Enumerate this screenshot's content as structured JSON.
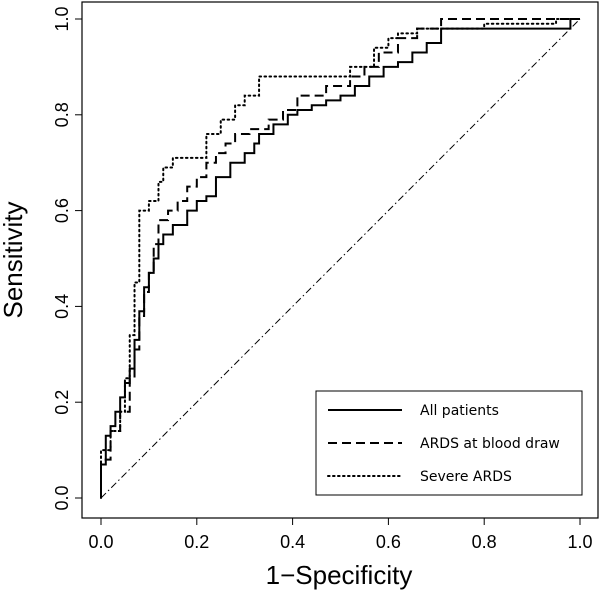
{
  "chart_data": {
    "type": "line",
    "title": "",
    "xlabel": "1−Specificity",
    "ylabel": "Sensitivity",
    "xlim": [
      0,
      1
    ],
    "ylim": [
      0,
      1
    ],
    "x_ticks": [
      "0.0",
      "0.2",
      "0.4",
      "0.6",
      "0.8",
      "1.0"
    ],
    "y_ticks": [
      "0.0",
      "0.2",
      "0.4",
      "0.6",
      "0.8",
      "1.0"
    ],
    "grid": false,
    "legend_position": "bottom-right",
    "reference_line": {
      "style": "dash-dot",
      "x": [
        0,
        1
      ],
      "y": [
        0,
        1
      ]
    },
    "series": [
      {
        "name": "All patients",
        "style": "solid",
        "x": [
          0.0,
          0.0,
          0.01,
          0.01,
          0.02,
          0.02,
          0.03,
          0.03,
          0.04,
          0.04,
          0.05,
          0.05,
          0.06,
          0.06,
          0.07,
          0.07,
          0.08,
          0.08,
          0.09,
          0.09,
          0.1,
          0.1,
          0.11,
          0.11,
          0.12,
          0.12,
          0.13,
          0.13,
          0.15,
          0.15,
          0.18,
          0.18,
          0.2,
          0.2,
          0.22,
          0.22,
          0.24,
          0.24,
          0.27,
          0.27,
          0.3,
          0.3,
          0.32,
          0.32,
          0.33,
          0.33,
          0.36,
          0.36,
          0.39,
          0.39,
          0.41,
          0.41,
          0.44,
          0.44,
          0.47,
          0.47,
          0.5,
          0.5,
          0.53,
          0.53,
          0.56,
          0.56,
          0.59,
          0.59,
          0.62,
          0.62,
          0.65,
          0.65,
          0.68,
          0.68,
          0.71,
          0.71,
          0.98,
          0.98,
          1.0
        ],
        "y": [
          0.0,
          0.07,
          0.07,
          0.13,
          0.13,
          0.15,
          0.15,
          0.18,
          0.18,
          0.21,
          0.21,
          0.24,
          0.24,
          0.27,
          0.27,
          0.33,
          0.33,
          0.39,
          0.39,
          0.44,
          0.44,
          0.47,
          0.47,
          0.5,
          0.5,
          0.53,
          0.53,
          0.55,
          0.55,
          0.57,
          0.57,
          0.6,
          0.6,
          0.62,
          0.62,
          0.63,
          0.63,
          0.67,
          0.67,
          0.7,
          0.7,
          0.72,
          0.72,
          0.74,
          0.74,
          0.76,
          0.76,
          0.78,
          0.78,
          0.8,
          0.8,
          0.81,
          0.81,
          0.82,
          0.82,
          0.83,
          0.83,
          0.84,
          0.84,
          0.86,
          0.86,
          0.88,
          0.88,
          0.9,
          0.9,
          0.91,
          0.91,
          0.93,
          0.93,
          0.95,
          0.95,
          0.98,
          0.98,
          1.0,
          1.0
        ]
      },
      {
        "name": "ARDS at blood draw",
        "style": "dashed",
        "x": [
          0.0,
          0.0,
          0.02,
          0.02,
          0.04,
          0.04,
          0.06,
          0.06,
          0.07,
          0.07,
          0.08,
          0.08,
          0.09,
          0.09,
          0.1,
          0.1,
          0.11,
          0.11,
          0.12,
          0.12,
          0.14,
          0.14,
          0.16,
          0.16,
          0.18,
          0.18,
          0.2,
          0.2,
          0.22,
          0.22,
          0.24,
          0.24,
          0.26,
          0.26,
          0.28,
          0.28,
          0.31,
          0.31,
          0.35,
          0.35,
          0.38,
          0.38,
          0.41,
          0.41,
          0.47,
          0.47,
          0.52,
          0.52,
          0.55,
          0.55,
          0.58,
          0.58,
          0.62,
          0.62,
          0.66,
          0.66,
          0.71,
          0.71,
          1.0
        ],
        "y": [
          0.0,
          0.08,
          0.08,
          0.14,
          0.14,
          0.18,
          0.18,
          0.25,
          0.25,
          0.31,
          0.31,
          0.38,
          0.38,
          0.43,
          0.43,
          0.47,
          0.47,
          0.53,
          0.53,
          0.58,
          0.58,
          0.6,
          0.6,
          0.62,
          0.62,
          0.65,
          0.65,
          0.67,
          0.67,
          0.7,
          0.7,
          0.72,
          0.72,
          0.74,
          0.74,
          0.76,
          0.76,
          0.77,
          0.77,
          0.79,
          0.79,
          0.81,
          0.81,
          0.84,
          0.84,
          0.86,
          0.86,
          0.88,
          0.88,
          0.9,
          0.9,
          0.93,
          0.93,
          0.96,
          0.96,
          0.98,
          0.98,
          1.0,
          1.0
        ]
      },
      {
        "name": "Severe ARDS",
        "style": "dotted",
        "x": [
          0.0,
          0.0,
          0.02,
          0.02,
          0.04,
          0.04,
          0.05,
          0.05,
          0.06,
          0.06,
          0.07,
          0.07,
          0.08,
          0.08,
          0.1,
          0.1,
          0.12,
          0.12,
          0.13,
          0.13,
          0.15,
          0.15,
          0.22,
          0.22,
          0.25,
          0.25,
          0.28,
          0.28,
          0.3,
          0.3,
          0.33,
          0.33,
          0.52,
          0.52,
          0.57,
          0.57,
          0.6,
          0.6,
          0.62,
          0.62,
          0.66,
          0.66,
          0.8,
          0.8,
          0.95,
          0.95,
          1.0
        ],
        "y": [
          0.0,
          0.1,
          0.1,
          0.14,
          0.14,
          0.18,
          0.18,
          0.25,
          0.25,
          0.34,
          0.34,
          0.45,
          0.45,
          0.6,
          0.6,
          0.62,
          0.62,
          0.66,
          0.66,
          0.69,
          0.69,
          0.71,
          0.71,
          0.76,
          0.76,
          0.79,
          0.79,
          0.82,
          0.82,
          0.84,
          0.84,
          0.88,
          0.88,
          0.9,
          0.9,
          0.94,
          0.94,
          0.96,
          0.96,
          0.97,
          0.97,
          0.98,
          0.98,
          0.99,
          0.99,
          1.0,
          1.0
        ]
      }
    ]
  }
}
